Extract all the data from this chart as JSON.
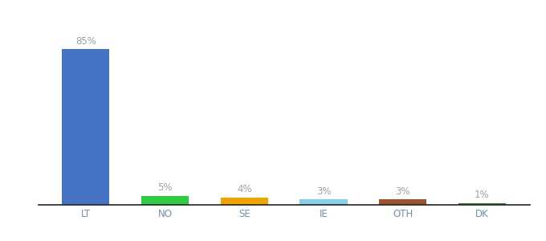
{
  "categories": [
    "LT",
    "NO",
    "SE",
    "IE",
    "OTH",
    "DK"
  ],
  "values": [
    85,
    5,
    4,
    3,
    3,
    1
  ],
  "bar_colors": [
    "#4472c4",
    "#2ecc40",
    "#f0a500",
    "#87ceeb",
    "#a0522d",
    "#228b22"
  ],
  "label_color": "#a0a0a0",
  "tick_color": "#7090b0",
  "background_color": "#ffffff",
  "ylim": [
    0,
    96
  ],
  "bar_width": 0.6,
  "label_fontsize": 8.5,
  "tick_fontsize": 8.5
}
